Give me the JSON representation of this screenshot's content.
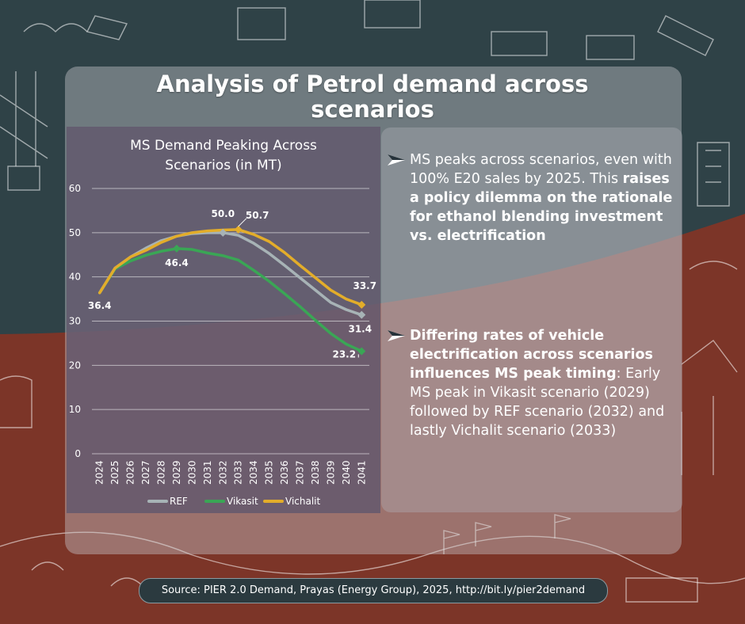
{
  "page_title": "Analysis of Petrol demand across scenarios",
  "bullets": [
    {
      "parts": [
        {
          "text": "MS peaks across scenarios, even with 100% E20 sales by 2025. This ",
          "bold": false
        },
        {
          "text": "raises a policy dilemma on the rationale for ethanol blending investment vs. electrification",
          "bold": true
        }
      ]
    },
    {
      "parts": [
        {
          "text": "Differing rates of vehicle electrification across scenarios influences MS peak timing",
          "bold": true
        },
        {
          "text": ": Early MS peak in Vikasit scenario (2029) followed by REF scenario (2032) and lastly Vichalit scenario (2033)",
          "bold": false
        }
      ]
    }
  ],
  "source": "Source: PIER 2.0 Demand, Prayas (Energy Group), 2025, http://bit.ly/pier2demand",
  "colors": {
    "ref": "#a7b3b6",
    "vikasit": "#3aa655",
    "vichalit": "#e3ad2a"
  },
  "chart_data": {
    "type": "line",
    "title": "MS Demand Peaking Across Scenarios (in MT)",
    "xlabel": "",
    "ylabel": "",
    "ylim": [
      0,
      60
    ],
    "yticks": [
      0,
      10,
      20,
      30,
      40,
      50,
      60
    ],
    "grid": true,
    "legend": "bottom",
    "categories": [
      "2024",
      "2025",
      "2026",
      "2027",
      "2028",
      "2029",
      "2030",
      "2031",
      "2032",
      "2033",
      "2034",
      "2035",
      "2036",
      "2037",
      "2038",
      "2039",
      "2040",
      "2041"
    ],
    "series": [
      {
        "name": "REF",
        "color": "#a7b3b6",
        "values": [
          36.4,
          42.0,
          44.5,
          46.5,
          48.2,
          49.2,
          49.8,
          50.0,
          50.0,
          49.4,
          47.6,
          45.3,
          42.6,
          39.8,
          37.0,
          34.2,
          32.6,
          31.4
        ]
      },
      {
        "name": "Vikasit",
        "color": "#3aa655",
        "values": [
          36.4,
          41.8,
          43.6,
          44.9,
          45.8,
          46.4,
          46.2,
          45.4,
          44.8,
          43.8,
          41.5,
          39.0,
          36.2,
          33.3,
          30.2,
          27.2,
          24.8,
          23.2
        ]
      },
      {
        "name": "Vichalit",
        "color": "#e3ad2a",
        "values": [
          36.4,
          42.0,
          44.5,
          46.0,
          47.8,
          49.2,
          50.0,
          50.4,
          50.6,
          50.7,
          49.6,
          48.0,
          45.5,
          42.6,
          39.8,
          37.0,
          35.0,
          33.7
        ]
      }
    ],
    "annotations": [
      {
        "text": "36.4",
        "series": 0,
        "index": 0
      },
      {
        "text": "46.4",
        "series": 1,
        "index": 5
      },
      {
        "text": "50.0",
        "series": 0,
        "index": 8
      },
      {
        "text": "50.7",
        "series": 2,
        "index": 9
      },
      {
        "text": "33.7",
        "series": 2,
        "index": 17
      },
      {
        "text": "31.4",
        "series": 0,
        "index": 17
      },
      {
        "text": "23.2",
        "series": 1,
        "index": 17
      }
    ]
  }
}
